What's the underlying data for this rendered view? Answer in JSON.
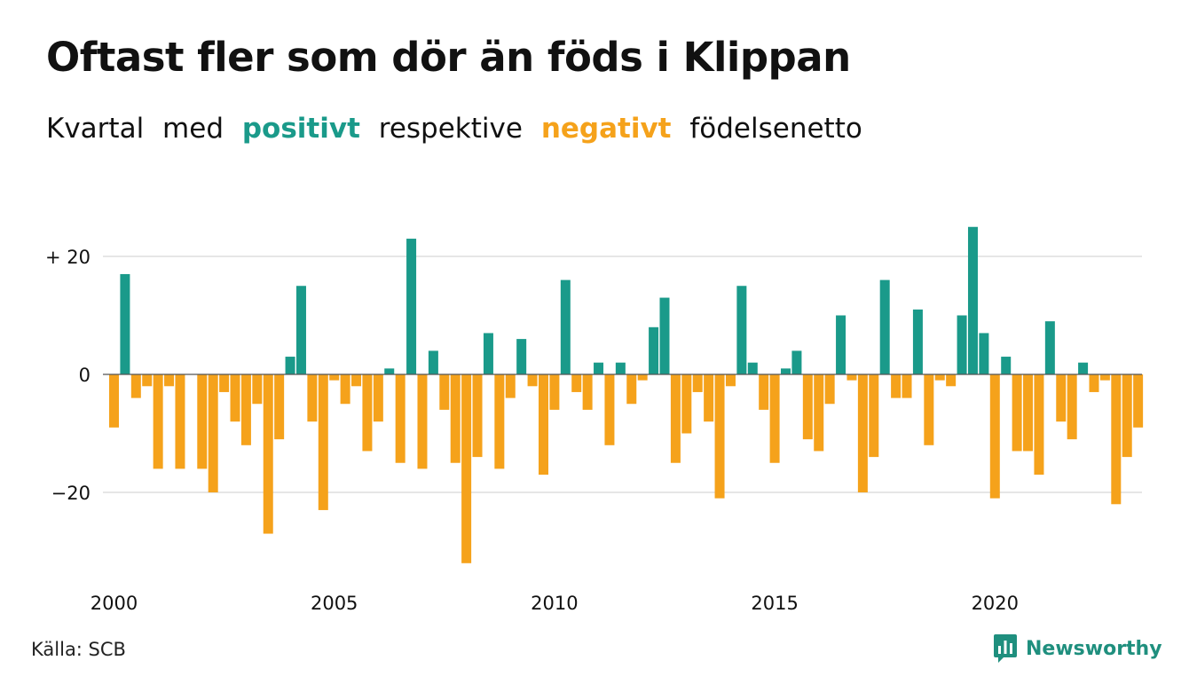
{
  "title": "Oftast fler som dör än föds i Klippan",
  "subtitle": {
    "w1": "Kvartal",
    "w2": "med",
    "positive": "positivt",
    "w3": "respektive",
    "negative": "negativt",
    "w4": "födelsenetto"
  },
  "colors": {
    "positive": "#1a9a8a",
    "negative": "#f5a21b",
    "grid": "#dddddd",
    "brand": "#1f8f7e"
  },
  "source": "Källa: SCB",
  "brand": {
    "name": "Newsworthy",
    "icon": "newsworthy-logo-icon"
  },
  "chart_data": {
    "type": "bar",
    "title": "Oftast fler som dör än föds i Klippan",
    "xlabel": "",
    "ylabel": "",
    "ylim": [
      -33,
      28
    ],
    "yticks": [
      {
        "value": 20,
        "label": "+ 20"
      },
      {
        "value": 0,
        "label": "0"
      },
      {
        "value": -20,
        "label": "−20"
      }
    ],
    "xticks": [
      {
        "year": 2000,
        "label": "2000"
      },
      {
        "year": 2005,
        "label": "2005"
      },
      {
        "year": 2010,
        "label": "2010"
      },
      {
        "year": 2015,
        "label": "2015"
      },
      {
        "year": 2020,
        "label": "2020"
      }
    ],
    "start_year": 2000,
    "start_quarter": 1,
    "values": [
      -9,
      17,
      -4,
      -2,
      -16,
      -2,
      -16,
      0,
      -16,
      -20,
      -3,
      -8,
      -12,
      -5,
      -27,
      -11,
      3,
      15,
      -8,
      -23,
      -1,
      -5,
      -2,
      -13,
      -8,
      1,
      -15,
      23,
      -16,
      4,
      -6,
      -15,
      -32,
      -14,
      7,
      -16,
      -4,
      6,
      -2,
      -17,
      -6,
      16,
      -3,
      -6,
      2,
      -12,
      2,
      -5,
      -1,
      8,
      13,
      -15,
      -10,
      -3,
      -8,
      -21,
      -2,
      15,
      2,
      -6,
      -15,
      1,
      4,
      -11,
      -13,
      -5,
      10,
      -1,
      -20,
      -14,
      16,
      -4,
      -4,
      11,
      -12,
      -1,
      -2,
      10,
      25,
      7,
      -21,
      3,
      -13,
      -13,
      -17,
      9,
      -8,
      -11,
      2,
      -3,
      -1,
      -22,
      -14,
      -9
    ]
  }
}
